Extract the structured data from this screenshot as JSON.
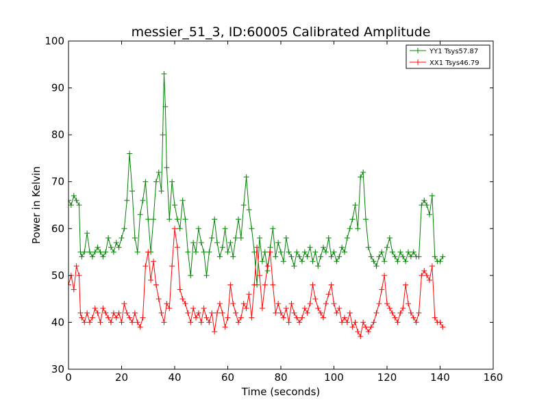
{
  "chart_data": {
    "type": "line",
    "title": "messier_51_3, ID:60005 Calibrated Amplitude",
    "xlabel": "Time (seconds)",
    "ylabel": "Power in Kelvin",
    "xlim": [
      0,
      160
    ],
    "ylim": [
      30,
      100
    ],
    "xticks": [
      "0",
      "20",
      "40",
      "60",
      "80",
      "100",
      "120",
      "140",
      "160"
    ],
    "yticks": [
      "30",
      "40",
      "50",
      "60",
      "70",
      "80",
      "90",
      "100"
    ],
    "grid": false,
    "legend_position": "top-right",
    "marker": "+",
    "series": [
      {
        "name": "YY1 Tsys57.87",
        "color": "#008000",
        "points": [
          [
            0,
            66
          ],
          [
            1,
            65
          ],
          [
            2,
            67
          ],
          [
            3,
            66
          ],
          [
            4,
            65
          ],
          [
            4.5,
            55
          ],
          [
            5,
            54
          ],
          [
            6,
            55
          ],
          [
            7,
            59
          ],
          [
            8,
            55
          ],
          [
            9,
            54
          ],
          [
            10,
            55
          ],
          [
            11,
            56
          ],
          [
            12,
            55
          ],
          [
            13,
            54
          ],
          [
            14,
            55
          ],
          [
            15,
            58
          ],
          [
            16,
            56
          ],
          [
            17,
            55
          ],
          [
            18,
            57
          ],
          [
            19,
            56
          ],
          [
            20,
            58
          ],
          [
            21,
            60
          ],
          [
            22,
            66
          ],
          [
            23,
            76
          ],
          [
            24,
            68
          ],
          [
            25,
            58
          ],
          [
            26,
            55
          ],
          [
            27,
            63
          ],
          [
            28,
            66
          ],
          [
            29,
            70
          ],
          [
            30,
            62
          ],
          [
            31,
            55
          ],
          [
            32,
            62
          ],
          [
            33,
            70
          ],
          [
            34,
            72
          ],
          [
            35,
            68
          ],
          [
            35.5,
            80
          ],
          [
            36,
            93
          ],
          [
            36.5,
            86
          ],
          [
            37,
            73
          ],
          [
            38,
            62
          ],
          [
            39,
            70
          ],
          [
            40,
            65
          ],
          [
            41,
            62
          ],
          [
            42,
            60
          ],
          [
            43,
            66
          ],
          [
            44,
            62
          ],
          [
            45,
            55
          ],
          [
            46,
            50
          ],
          [
            47,
            57
          ],
          [
            48,
            55
          ],
          [
            49,
            60
          ],
          [
            50,
            57
          ],
          [
            51,
            55
          ],
          [
            52,
            50
          ],
          [
            53,
            55
          ],
          [
            54,
            58
          ],
          [
            55,
            62
          ],
          [
            56,
            57
          ],
          [
            57,
            54
          ],
          [
            58,
            56
          ],
          [
            59,
            60
          ],
          [
            60,
            55
          ],
          [
            61,
            57
          ],
          [
            62,
            54
          ],
          [
            63,
            58
          ],
          [
            64,
            62
          ],
          [
            65,
            58
          ],
          [
            66,
            65
          ],
          [
            67,
            71
          ],
          [
            68,
            64
          ],
          [
            69,
            60
          ],
          [
            70,
            55
          ],
          [
            71,
            48
          ],
          [
            72,
            58
          ],
          [
            73,
            53
          ],
          [
            74,
            55
          ],
          [
            75,
            51
          ],
          [
            76,
            56
          ],
          [
            77,
            60
          ],
          [
            78,
            54
          ],
          [
            79,
            57
          ],
          [
            80,
            55
          ],
          [
            81,
            53
          ],
          [
            82,
            58
          ],
          [
            83,
            55
          ],
          [
            84,
            54
          ],
          [
            85,
            52
          ],
          [
            86,
            55
          ],
          [
            87,
            54
          ],
          [
            88,
            53
          ],
          [
            89,
            55
          ],
          [
            90,
            54
          ],
          [
            91,
            56
          ],
          [
            92,
            53
          ],
          [
            93,
            55
          ],
          [
            94,
            52
          ],
          [
            95,
            54
          ],
          [
            96,
            56
          ],
          [
            97,
            55
          ],
          [
            98,
            58
          ],
          [
            99,
            54
          ],
          [
            100,
            55
          ],
          [
            101,
            53
          ],
          [
            102,
            54
          ],
          [
            103,
            56
          ],
          [
            104,
            55
          ],
          [
            105,
            58
          ],
          [
            106,
            60
          ],
          [
            107,
            62
          ],
          [
            108,
            65
          ],
          [
            109,
            60
          ],
          [
            110,
            71
          ],
          [
            111,
            72
          ],
          [
            112,
            62
          ],
          [
            113,
            56
          ],
          [
            114,
            54
          ],
          [
            115,
            53
          ],
          [
            116,
            52
          ],
          [
            117,
            54
          ],
          [
            118,
            55
          ],
          [
            119,
            53
          ],
          [
            120,
            56
          ],
          [
            121,
            58
          ],
          [
            122,
            55
          ],
          [
            123,
            54
          ],
          [
            124,
            53
          ],
          [
            125,
            55
          ],
          [
            126,
            54
          ],
          [
            127,
            53
          ],
          [
            128,
            55
          ],
          [
            129,
            54
          ],
          [
            130,
            55
          ],
          [
            131,
            54
          ],
          [
            132,
            54
          ],
          [
            133,
            65
          ],
          [
            134,
            66
          ],
          [
            135,
            65
          ],
          [
            136,
            63
          ],
          [
            137,
            67
          ],
          [
            138,
            54
          ],
          [
            139,
            53
          ],
          [
            140,
            53
          ],
          [
            141,
            54
          ]
        ]
      },
      {
        "name": "XX1 Tsys46.79",
        "color": "#ff0000",
        "points": [
          [
            0,
            48
          ],
          [
            1,
            50
          ],
          [
            2,
            47
          ],
          [
            3,
            52
          ],
          [
            4,
            50
          ],
          [
            4.5,
            42
          ],
          [
            5,
            41
          ],
          [
            6,
            40
          ],
          [
            7,
            42
          ],
          [
            8,
            40
          ],
          [
            9,
            41
          ],
          [
            10,
            43
          ],
          [
            11,
            42
          ],
          [
            12,
            40
          ],
          [
            13,
            43
          ],
          [
            14,
            42
          ],
          [
            15,
            41
          ],
          [
            16,
            40
          ],
          [
            17,
            42
          ],
          [
            18,
            41
          ],
          [
            19,
            42
          ],
          [
            20,
            40
          ],
          [
            21,
            44
          ],
          [
            22,
            42
          ],
          [
            23,
            41
          ],
          [
            24,
            40
          ],
          [
            25,
            42
          ],
          [
            26,
            40
          ],
          [
            27,
            39
          ],
          [
            28,
            41
          ],
          [
            29,
            52
          ],
          [
            30,
            55
          ],
          [
            31,
            49
          ],
          [
            32,
            53
          ],
          [
            33,
            48
          ],
          [
            34,
            45
          ],
          [
            35,
            42
          ],
          [
            36,
            40
          ],
          [
            37,
            44
          ],
          [
            38,
            43
          ],
          [
            39,
            52
          ],
          [
            40,
            60
          ],
          [
            41,
            56
          ],
          [
            42,
            47
          ],
          [
            43,
            45
          ],
          [
            44,
            44
          ],
          [
            45,
            42
          ],
          [
            46,
            40
          ],
          [
            47,
            43
          ],
          [
            48,
            41
          ],
          [
            49,
            42
          ],
          [
            50,
            40
          ],
          [
            51,
            43
          ],
          [
            52,
            41
          ],
          [
            53,
            40
          ],
          [
            54,
            42
          ],
          [
            55,
            38
          ],
          [
            56,
            42
          ],
          [
            57,
            44
          ],
          [
            58,
            42
          ],
          [
            59,
            39
          ],
          [
            60,
            41
          ],
          [
            61,
            48
          ],
          [
            62,
            44
          ],
          [
            63,
            42
          ],
          [
            64,
            40
          ],
          [
            65,
            41
          ],
          [
            66,
            44
          ],
          [
            67,
            43
          ],
          [
            68,
            46
          ],
          [
            69,
            41
          ],
          [
            70,
            48
          ],
          [
            71,
            56
          ],
          [
            72,
            50
          ],
          [
            73,
            43
          ],
          [
            74,
            48
          ],
          [
            75,
            52
          ],
          [
            76,
            55
          ],
          [
            77,
            48
          ],
          [
            78,
            42
          ],
          [
            79,
            44
          ],
          [
            80,
            42
          ],
          [
            81,
            41
          ],
          [
            82,
            43
          ],
          [
            83,
            40
          ],
          [
            84,
            44
          ],
          [
            85,
            42
          ],
          [
            86,
            41
          ],
          [
            87,
            40
          ],
          [
            88,
            41
          ],
          [
            89,
            43
          ],
          [
            90,
            42
          ],
          [
            91,
            44
          ],
          [
            92,
            48
          ],
          [
            93,
            45
          ],
          [
            94,
            43
          ],
          [
            95,
            42
          ],
          [
            96,
            41
          ],
          [
            97,
            44
          ],
          [
            98,
            46
          ],
          [
            99,
            48
          ],
          [
            100,
            44
          ],
          [
            101,
            42
          ],
          [
            102,
            43
          ],
          [
            103,
            40
          ],
          [
            104,
            41
          ],
          [
            105,
            40
          ],
          [
            106,
            42
          ],
          [
            107,
            39
          ],
          [
            108,
            40
          ],
          [
            109,
            38
          ],
          [
            110,
            37
          ],
          [
            111,
            40
          ],
          [
            112,
            39
          ],
          [
            113,
            38
          ],
          [
            114,
            39
          ],
          [
            115,
            40
          ],
          [
            116,
            42
          ],
          [
            117,
            44
          ],
          [
            118,
            47
          ],
          [
            119,
            50
          ],
          [
            120,
            44
          ],
          [
            121,
            43
          ],
          [
            122,
            42
          ],
          [
            123,
            41
          ],
          [
            124,
            40
          ],
          [
            125,
            42
          ],
          [
            126,
            43
          ],
          [
            127,
            48
          ],
          [
            128,
            44
          ],
          [
            129,
            42
          ],
          [
            130,
            41
          ],
          [
            131,
            40
          ],
          [
            132,
            42
          ],
          [
            133,
            50
          ],
          [
            134,
            51
          ],
          [
            135,
            50
          ],
          [
            136,
            49
          ],
          [
            137,
            52
          ],
          [
            138,
            41
          ],
          [
            139,
            40
          ],
          [
            140,
            40
          ],
          [
            141,
            39
          ]
        ]
      }
    ]
  }
}
